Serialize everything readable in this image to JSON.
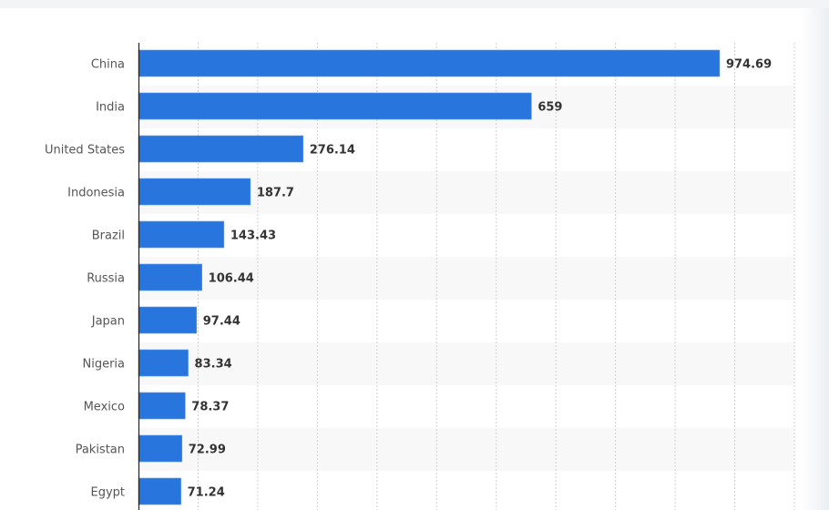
{
  "chart_data": {
    "type": "bar",
    "orientation": "horizontal",
    "title": "",
    "xlabel": "",
    "ylabel": "",
    "categories": [
      "China",
      "India",
      "United States",
      "Indonesia",
      "Brazil",
      "Russia",
      "Japan",
      "Nigeria",
      "Mexico",
      "Pakistan",
      "Egypt"
    ],
    "values": [
      974.69,
      659,
      276.14,
      187.7,
      143.43,
      106.44,
      97.44,
      83.34,
      78.37,
      72.99,
      71.24
    ],
    "value_labels": [
      "974.69",
      "659",
      "276.14",
      "187.7",
      "143.43",
      "106.44",
      "97.44",
      "83.34",
      "78.37",
      "72.99",
      "71.24"
    ],
    "xlim": [
      0,
      1100
    ],
    "grid_step": 100,
    "grid": true,
    "bar_color": "#2876dd",
    "stripe_color": "#f8f8f8"
  }
}
